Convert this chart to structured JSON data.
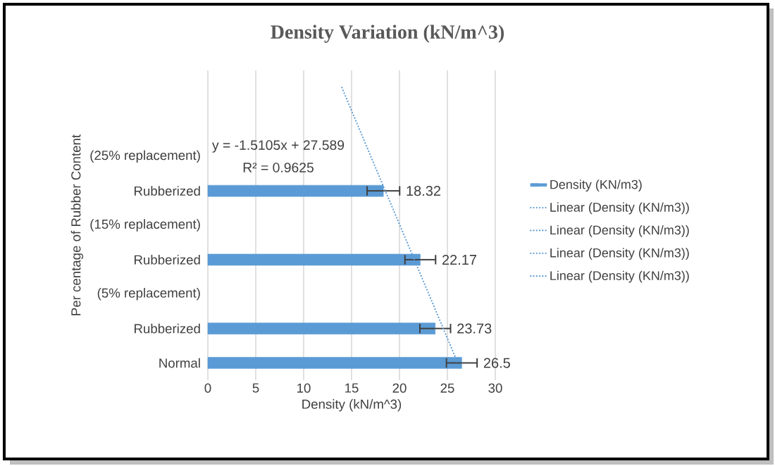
{
  "chart_data": {
    "type": "bar",
    "orientation": "horizontal",
    "title": "Density Variation (kN/m^3)",
    "xlabel": "Density (kN/m^3)",
    "ylabel": "Per centage of Rubber Content",
    "categories": [
      null,
      null,
      "(25% replacement)",
      "Rubberized",
      "(15% replacement)",
      "Rubberized",
      "(5% replacement)",
      "Rubberized",
      "Normal"
    ],
    "series": [
      {
        "name": "Density (KN/m3)",
        "color": "#5b9bd5",
        "values": [
          null,
          null,
          null,
          18.32,
          null,
          22.17,
          null,
          23.73,
          26.5
        ],
        "errors": [
          null,
          null,
          null,
          1.7,
          null,
          1.6,
          null,
          1.6,
          1.6
        ],
        "value_labels": [
          null,
          null,
          null,
          "18.32",
          null,
          "22.17",
          null,
          "23.73",
          "26.5"
        ]
      },
      {
        "name": "Linear (Density (KN/m3))",
        "type": "line",
        "line_style": "dotted",
        "color": "#5b9bd5",
        "values": [
          13.99,
          15.5,
          17.01,
          18.52,
          20.04,
          21.55,
          23.06,
          24.57,
          26.08
        ]
      },
      {
        "name": "Linear (Density (KN/m3))",
        "type": "line",
        "line_style": "dotted",
        "color": "#5b9bd5",
        "values": [
          null,
          null,
          null,
          null,
          null,
          null,
          null,
          null,
          null
        ]
      },
      {
        "name": "Linear (Density (KN/m3))",
        "type": "line",
        "line_style": "dotted",
        "color": "#5b9bd5",
        "values": [
          null,
          null,
          null,
          null,
          null,
          null,
          null,
          null,
          null
        ]
      },
      {
        "name": "Linear (Density (KN/m3))",
        "type": "line",
        "line_style": "dotted",
        "color": "#5b9bd5",
        "values": [
          null,
          null,
          null,
          null,
          null,
          null,
          null,
          null,
          null
        ]
      }
    ],
    "xlim": [
      0,
      30
    ],
    "xticks": [
      0,
      5,
      10,
      15,
      20,
      25,
      30
    ],
    "grid": "x",
    "legend": "right",
    "annotations": [
      "y = -1.5105x + 27.589",
      "R² = 0.9625"
    ]
  }
}
